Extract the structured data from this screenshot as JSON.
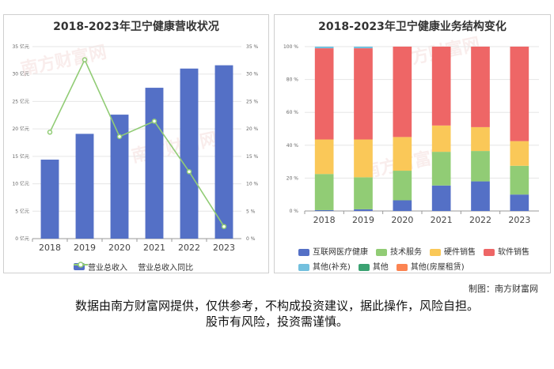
{
  "left_chart": {
    "title": "2018-2023年卫宁健康营收状况",
    "type": "bar",
    "categories": [
      "2018",
      "2019",
      "2020",
      "2021",
      "2022",
      "2023"
    ],
    "left_axis_ticks": [
      "0 亿元",
      "5 亿元",
      "10 亿元",
      "15 亿元",
      "20 亿元",
      "25 亿元",
      "30 亿元",
      "35 亿元"
    ],
    "right_axis_ticks": [
      "0 %",
      "5 %",
      "10 %",
      "15 %",
      "20 %",
      "25 %",
      "30 %",
      "35 %"
    ],
    "legend": {
      "bar": "营业总收入",
      "line": "营业总收入同比"
    }
  },
  "right_chart": {
    "title": "2018-2023年卫宁健康业务结构变化",
    "type": "stacked-bar",
    "categories": [
      "2018",
      "2019",
      "2020",
      "2021",
      "2022",
      "2023"
    ],
    "y_ticks": [
      "0 %",
      "20 %",
      "40 %",
      "60 %",
      "80 %",
      "100 %"
    ]
  },
  "chart_data": [
    {
      "type": "bar",
      "title": "2018-2023年卫宁健康营收状况",
      "categories": [
        "2018",
        "2019",
        "2020",
        "2021",
        "2022",
        "2023"
      ],
      "series": [
        {
          "name": "营业总收入",
          "kind": "bar",
          "axis": "left",
          "values": [
            14.4,
            19.1,
            22.6,
            27.5,
            31.0,
            31.6
          ]
        },
        {
          "name": "营业总收入同比",
          "kind": "line",
          "axis": "right",
          "values": [
            19.4,
            32.6,
            18.6,
            21.4,
            12.2,
            2.2
          ]
        }
      ],
      "ylim_left": [
        0,
        35
      ],
      "ylim_right": [
        0,
        35
      ],
      "ylabel_left": "亿元",
      "ylabel_right": "%"
    },
    {
      "type": "bar",
      "stacked": true,
      "title": "2018-2023年卫宁健康业务结构变化",
      "categories": [
        "2018",
        "2019",
        "2020",
        "2021",
        "2022",
        "2023"
      ],
      "ylim": [
        0,
        100
      ],
      "series": [
        {
          "name": "互联网医疗健康",
          "color": "#5470c6",
          "values": [
            0.5,
            1.0,
            6.5,
            15.5,
            18.0,
            10.0
          ]
        },
        {
          "name": "技术服务",
          "color": "#91cc75",
          "values": [
            22.0,
            19.5,
            18.0,
            20.5,
            18.5,
            17.5
          ]
        },
        {
          "name": "硬件销售",
          "color": "#fac858",
          "values": [
            21.0,
            23.0,
            20.5,
            16.0,
            14.5,
            15.0
          ]
        },
        {
          "name": "软件销售",
          "color": "#ee6666",
          "values": [
            55.5,
            55.5,
            55.0,
            48.0,
            49.0,
            57.5
          ]
        },
        {
          "name": "其他(补充)",
          "color": "#73c0de",
          "values": [
            1.0,
            1.0,
            0,
            0,
            0,
            0
          ]
        },
        {
          "name": "其他",
          "color": "#3ba272",
          "values": [
            0,
            0,
            0,
            0,
            0,
            0
          ]
        },
        {
          "name": "其他(房屋租赁)",
          "color": "#fc8452",
          "values": [
            0,
            0,
            0,
            0,
            0,
            0
          ]
        }
      ]
    }
  ],
  "watermark": "南方财富网",
  "credit": "制图：南方财富网",
  "disclaimer_line1": "数据由南方财富网提供，仅供参考，不构成投资建议，据此操作，风险自担。",
  "disclaimer_line2": "股市有风险，投资需谨慎。",
  "colors": {
    "bar": "#5470c6",
    "line": "#91cc75"
  }
}
